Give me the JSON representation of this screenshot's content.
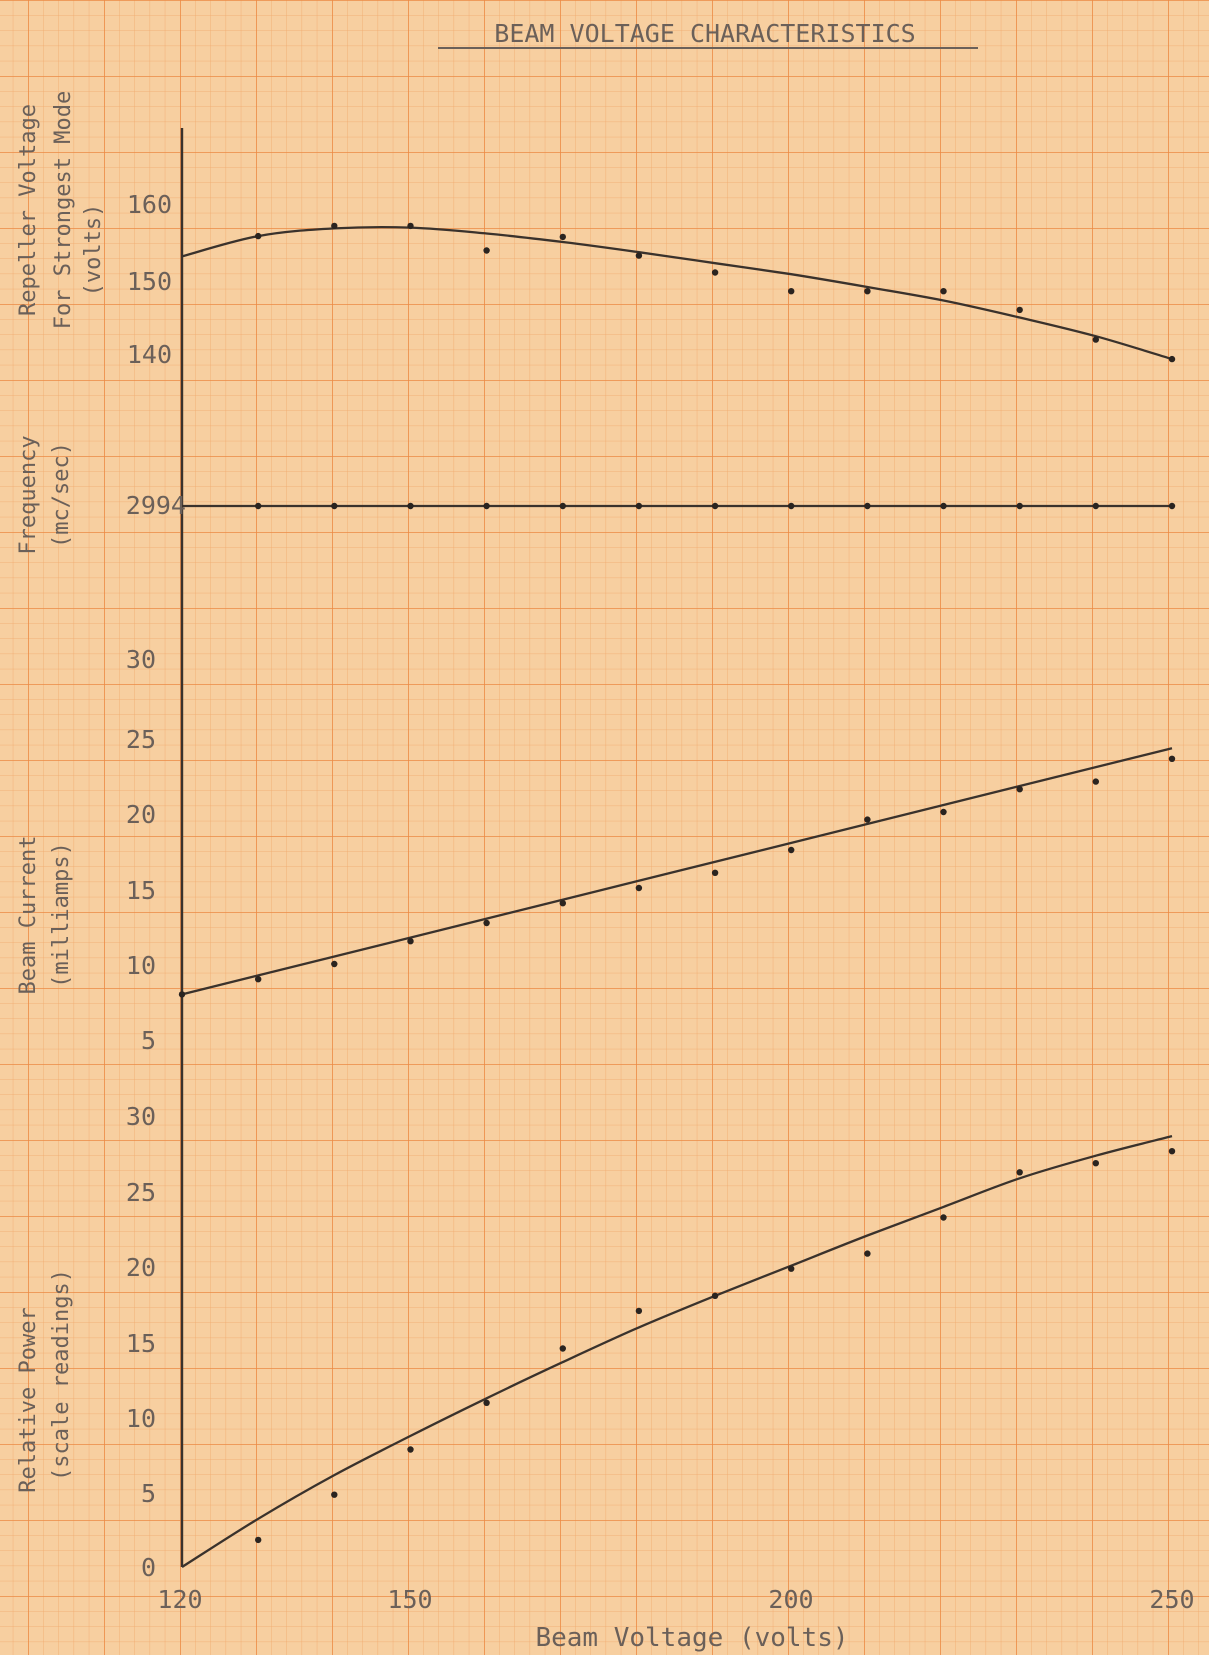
{
  "chart_data": {
    "type": "line",
    "title": "BEAM VOLTAGE CHARACTERISTICS",
    "xlabel": "Beam Voltage (volts)",
    "x_ticks": [
      "120",
      "150",
      "200",
      "250"
    ],
    "xlim": [
      120,
      250
    ],
    "colors": {
      "paper": "#f7cfa0",
      "grid_minor": "#f1a86a",
      "grid_major": "#ec8a44",
      "ink": "#3a322c",
      "text": "#6b6059"
    },
    "panels": [
      {
        "ylabel_lines": [
          "Repeller Voltage",
          "For Strongest Mode",
          "(volts)"
        ],
        "y_ticks": [
          "140",
          "150",
          "160"
        ],
        "ylim": [
          136,
          169
        ],
        "series": [
          {
            "x": [
              130,
              140,
              150,
              160,
              170,
              180,
              190,
              200,
              210,
              220,
              230,
              240,
              250
            ],
            "y": [
              156.5,
              157.7,
              157.7,
              154.8,
              156.4,
              154.2,
              152.2,
              150.0,
              150.0,
              150.0,
              147.8,
              144.3,
              142.0
            ],
            "fit_x": [
              120,
              130,
              140,
              150,
              160,
              170,
              180,
              190,
              200,
              210,
              220,
              230,
              240,
              250
            ],
            "fit_y": [
              154.1,
              156.5,
              157.4,
              157.5,
              156.8,
              155.8,
              154.6,
              153.3,
              152.0,
              150.5,
              148.9,
              146.9,
              144.7,
              142.0
            ]
          }
        ]
      },
      {
        "ylabel_lines": [
          "Frequency",
          "(mc/sec)"
        ],
        "y_ticks": [
          "2994"
        ],
        "ylim": [
          2990,
          2998
        ],
        "series": [
          {
            "x": [
              130,
              140,
              150,
              160,
              170,
              180,
              190,
              200,
              210,
              220,
              230,
              240,
              250
            ],
            "y": [
              2994,
              2994,
              2994,
              2994,
              2994,
              2994,
              2994,
              2994,
              2994,
              2994,
              2994,
              2994,
              2994
            ],
            "fit_x": [
              120,
              250
            ],
            "fit_y": [
              2994,
              2994
            ]
          }
        ]
      },
      {
        "ylabel_lines": [
          "Beam Current",
          "(milliamps)"
        ],
        "y_ticks": [
          "5",
          "10",
          "15",
          "20",
          "25",
          "30"
        ],
        "ylim": [
          5,
          30
        ],
        "series": [
          {
            "x": [
              120,
              130,
              140,
              150,
              160,
              170,
              180,
              190,
              200,
              210,
              220,
              230,
              240,
              250
            ],
            "y": [
              8.0,
              9.0,
              10.0,
              11.5,
              12.7,
              14.0,
              15.0,
              16.0,
              17.5,
              19.5,
              20.0,
              21.5,
              22.0,
              23.5
            ],
            "fit_x": [
              120,
              250
            ],
            "fit_y": [
              8.0,
              24.2
            ]
          }
        ]
      },
      {
        "ylabel_lines": [
          "Relative Power",
          "(scale readings)"
        ],
        "y_ticks": [
          "0",
          "5",
          "10",
          "15",
          "20",
          "25",
          "30"
        ],
        "ylim": [
          0,
          30
        ],
        "series": [
          {
            "x": [
              130,
              140,
              150,
              160,
              170,
              180,
              190,
              200,
              210,
              220,
              230,
              240,
              250
            ],
            "y": [
              1.8,
              4.8,
              7.8,
              10.9,
              14.5,
              17.0,
              18.0,
              19.8,
              20.8,
              23.2,
              26.2,
              26.8,
              27.6
            ],
            "fit_x": [
              120,
              130,
              140,
              150,
              160,
              170,
              180,
              190,
              200,
              210,
              220,
              230,
              240,
              250
            ],
            "fit_y": [
              0.0,
              3.2,
              6.1,
              8.7,
              11.2,
              13.6,
              15.9,
              18.0,
              20.0,
              22.0,
              23.9,
              25.8,
              27.3,
              28.6
            ]
          }
        ]
      }
    ]
  }
}
